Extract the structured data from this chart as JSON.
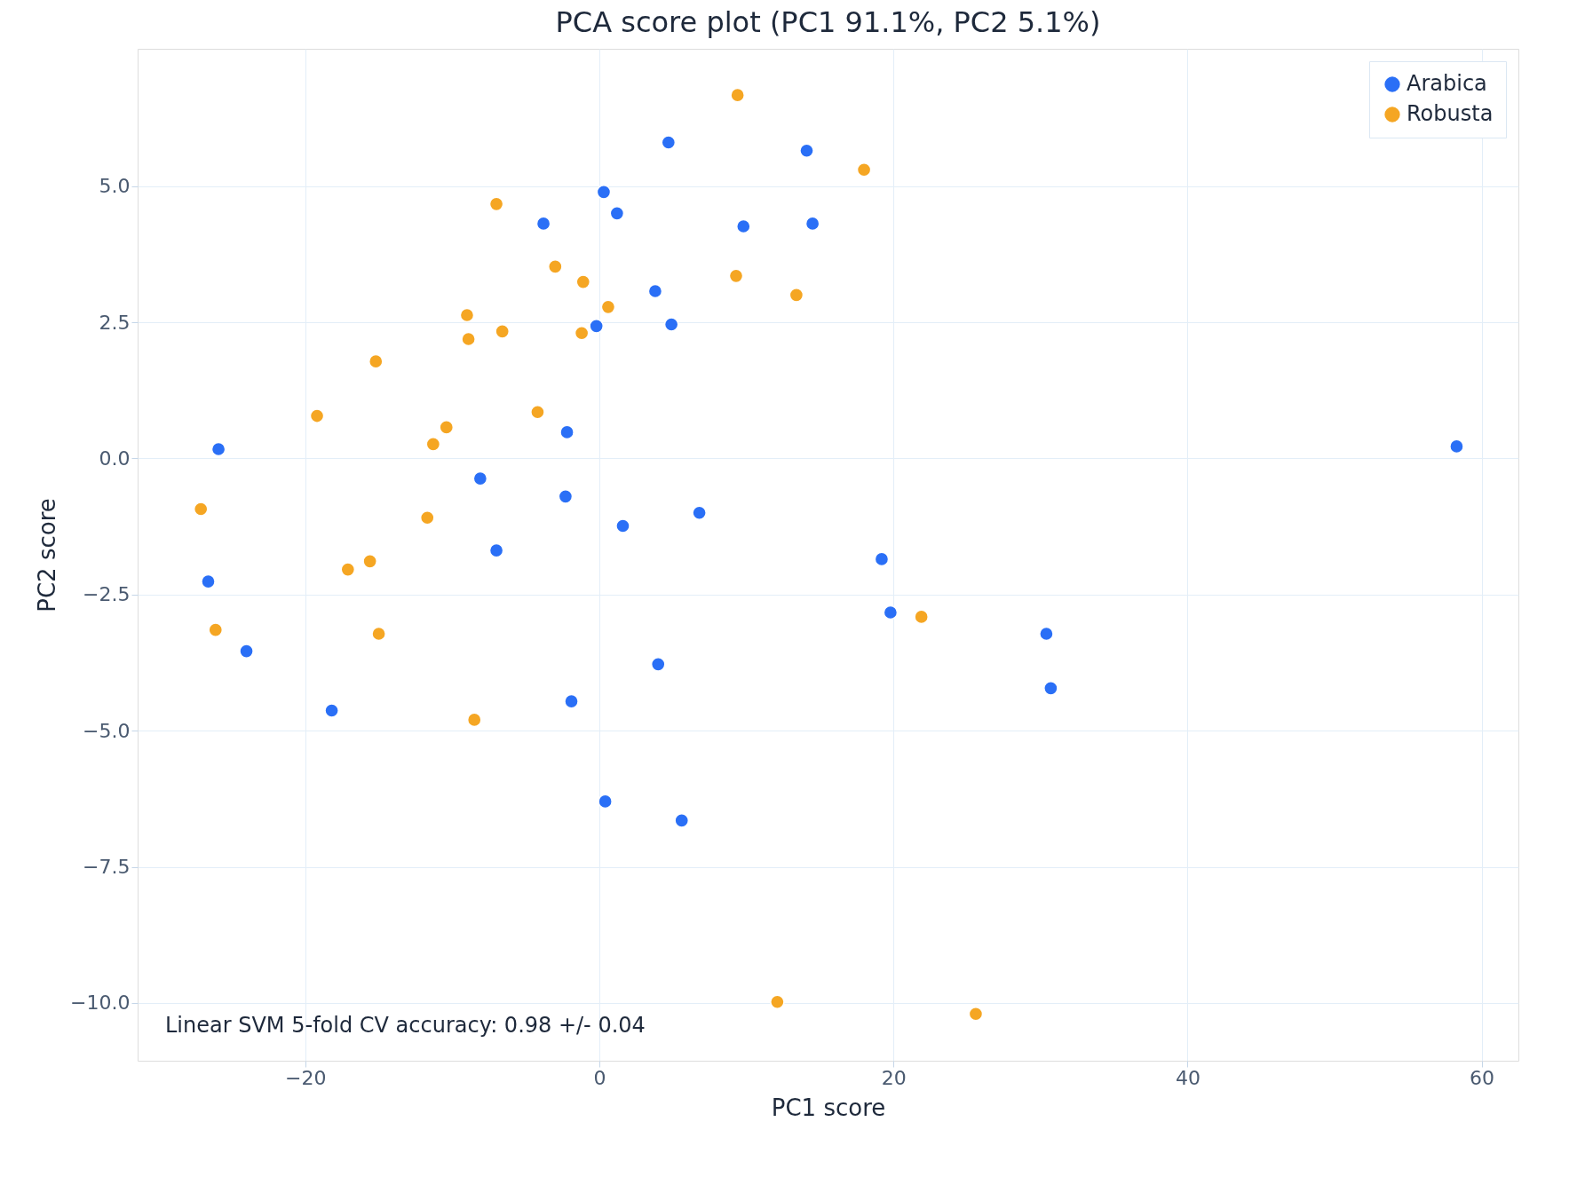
{
  "chart_data": {
    "type": "scatter",
    "title": "PCA score plot (PC1 91.1%, PC2 5.1%)",
    "xlabel": "PC1 score",
    "ylabel": "PC2 score",
    "xlim": [
      -31.4,
      62.5
    ],
    "ylim": [
      -11.06,
      7.52
    ],
    "xticks": [
      {
        "value": -20,
        "label": "−20"
      },
      0,
      20,
      40,
      60
    ],
    "yticks": [
      {
        "value": -10,
        "label": "−10.0"
      },
      {
        "value": -7.5,
        "label": "−7.5"
      },
      {
        "value": -5,
        "label": "−5.0"
      },
      {
        "value": -2.5,
        "label": "−2.5"
      },
      {
        "value": 0,
        "label": "0.0"
      },
      2.5,
      {
        "value": 5,
        "label": "5.0"
      }
    ],
    "grid": true,
    "legend": "top right",
    "marker": "circle",
    "annotations": [
      "Linear SVM 5-fold CV accuracy: 0.98 +/- 0.04"
    ],
    "series": [
      {
        "name": "Arabica",
        "color": "#2a6ff6",
        "x": [
          4.7,
          14.1,
          0.3,
          1.2,
          -3.8,
          9.8,
          14.5,
          3.8,
          -0.2,
          4.9,
          -2.2,
          -25.9,
          58.3,
          -8.1,
          -2.3,
          6.8,
          1.6,
          -7.0,
          19.2,
          -26.6,
          19.8,
          30.4,
          -24.0,
          4.0,
          30.7,
          -18.2,
          -1.9,
          0.4,
          5.6
        ],
        "values": [
          5.8,
          5.65,
          4.89,
          4.5,
          4.31,
          4.26,
          4.31,
          3.07,
          2.43,
          2.46,
          0.48,
          0.17,
          0.22,
          -0.37,
          -0.7,
          -1.0,
          -1.24,
          -1.69,
          -1.85,
          -2.26,
          -2.83,
          -3.22,
          -3.54,
          -3.78,
          -4.22,
          -4.63,
          -4.46,
          -6.3,
          -6.65
        ]
      },
      {
        "name": "Robusta",
        "color": "#f5a623",
        "x": [
          9.4,
          18.0,
          -7.0,
          -3.0,
          -1.1,
          9.3,
          13.4,
          0.6,
          -9.0,
          -6.6,
          -8.9,
          -1.2,
          -15.2,
          -19.2,
          -4.2,
          -10.4,
          -11.3,
          -27.1,
          -11.7,
          -17.1,
          -15.6,
          -26.1,
          -15.0,
          21.9,
          -8.5,
          12.1,
          25.6
        ],
        "values": [
          6.67,
          5.3,
          4.67,
          3.52,
          3.24,
          3.35,
          3.0,
          2.78,
          2.63,
          2.33,
          2.19,
          2.3,
          1.78,
          0.78,
          0.85,
          0.57,
          0.26,
          -0.93,
          -1.09,
          -2.04,
          -1.89,
          -3.15,
          -3.22,
          -2.91,
          -4.8,
          -9.98,
          -10.2
        ]
      }
    ]
  }
}
